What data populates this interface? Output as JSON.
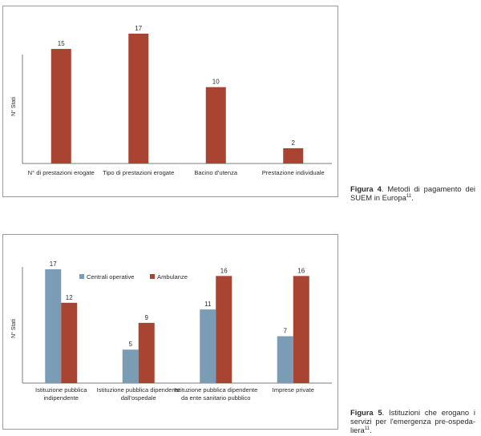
{
  "chart_data": [
    {
      "type": "bar",
      "ylabel": "N° Stati",
      "categories": [
        [
          "N° di prestazioni erogate"
        ],
        [
          "Tipo di prestazioni erogate"
        ],
        [
          "Bacino d'utenza"
        ],
        [
          "Prestazione individuale"
        ]
      ],
      "series": [
        {
          "values": [
            15,
            17,
            10,
            2
          ],
          "color": "#a94433"
        }
      ],
      "ylim": [
        0,
        17
      ],
      "grid": false,
      "caption": {
        "label": "Figura 4",
        "text": ". Metodi di pagamento dei SUEM in Europa",
        "ref": "11",
        "end": "."
      }
    },
    {
      "type": "bar",
      "ylabel": "N° Stati",
      "categories": [
        [
          "Istituzione pubblica",
          "indipendente"
        ],
        [
          "Istituzione pubblica dipendente",
          "dall'ospedale"
        ],
        [
          "Istituzione pubblica dipendente",
          "da ente sanitario pubblico"
        ],
        [
          "Imprese private"
        ]
      ],
      "series": [
        {
          "name": "Centrali operative",
          "values": [
            17,
            5,
            11,
            7
          ],
          "color": "#7a9db5"
        },
        {
          "name": "Ambulanze",
          "values": [
            12,
            9,
            16,
            16
          ],
          "color": "#a94433"
        }
      ],
      "ylim": [
        0,
        17
      ],
      "legend": "top-left",
      "grid": false,
      "caption": {
        "label": "Figura 5",
        "text": ". Istituzioni che erogano i servizi per l'emergenza pre-ospeda-liera",
        "ref": "11",
        "end": "."
      }
    }
  ]
}
